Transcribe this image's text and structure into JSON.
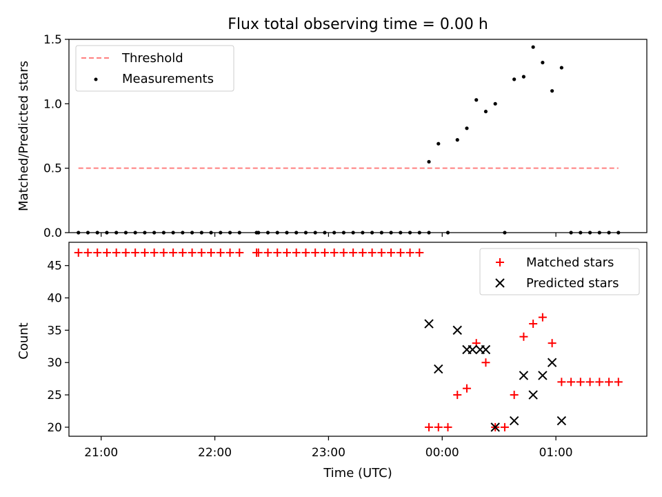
{
  "chart_data": [
    {
      "type": "scatter",
      "title": "Flux total observing time = 0.00 h",
      "xlabel": "",
      "ylabel": "Matched/Predicted stars",
      "x_unit": "time (UTC)",
      "xlim": [
        "20:43",
        "01:48"
      ],
      "ylim": [
        0,
        1.5
      ],
      "yticks": [
        "0.0",
        "0.5",
        "1.0",
        "1.5"
      ],
      "legend_position": "upper-left",
      "series": [
        {
          "name": "Threshold",
          "kind": "dashed-line",
          "color": "#ff7f7f",
          "points": [
            [
              "20:48",
              0.5
            ],
            [
              "01:33",
              0.5
            ]
          ]
        },
        {
          "name": "Measurements",
          "kind": "dots",
          "color": "#000000",
          "points": [
            [
              "20:48",
              0
            ],
            [
              "20:53",
              0
            ],
            [
              "20:58",
              0
            ],
            [
              "21:03",
              0
            ],
            [
              "21:08",
              0
            ],
            [
              "21:13",
              0
            ],
            [
              "21:18",
              0
            ],
            [
              "21:23",
              0
            ],
            [
              "21:28",
              0
            ],
            [
              "21:33",
              0
            ],
            [
              "21:38",
              0
            ],
            [
              "21:43",
              0
            ],
            [
              "21:48",
              0
            ],
            [
              "21:53",
              0
            ],
            [
              "21:58",
              0
            ],
            [
              "22:03",
              0
            ],
            [
              "22:08",
              0
            ],
            [
              "22:13",
              0
            ],
            [
              "22:22",
              0
            ],
            [
              "22:23",
              0
            ],
            [
              "22:28",
              0
            ],
            [
              "22:33",
              0
            ],
            [
              "22:38",
              0
            ],
            [
              "22:43",
              0
            ],
            [
              "22:48",
              0
            ],
            [
              "22:53",
              0
            ],
            [
              "22:58",
              0
            ],
            [
              "23:03",
              0
            ],
            [
              "23:08",
              0
            ],
            [
              "23:13",
              0
            ],
            [
              "23:18",
              0
            ],
            [
              "23:23",
              0
            ],
            [
              "23:28",
              0
            ],
            [
              "23:33",
              0
            ],
            [
              "23:38",
              0
            ],
            [
              "23:43",
              0
            ],
            [
              "23:48",
              0
            ],
            [
              "23:53",
              0
            ],
            [
              "23:53",
              0.55
            ],
            [
              "23:58",
              0.69
            ],
            [
              "00:03",
              0
            ],
            [
              "00:08",
              0.72
            ],
            [
              "00:13",
              0.81
            ],
            [
              "00:18",
              1.03
            ],
            [
              "00:23",
              0.94
            ],
            [
              "00:28",
              1.0
            ],
            [
              "00:33",
              0
            ],
            [
              "00:38",
              1.19
            ],
            [
              "00:43",
              1.21
            ],
            [
              "00:48",
              1.44
            ],
            [
              "00:53",
              1.32
            ],
            [
              "00:58",
              1.1
            ],
            [
              "01:03",
              1.28
            ],
            [
              "01:08",
              0
            ],
            [
              "01:13",
              0
            ],
            [
              "01:18",
              0
            ],
            [
              "01:23",
              0
            ],
            [
              "01:28",
              0
            ],
            [
              "01:33",
              0
            ]
          ]
        }
      ]
    },
    {
      "type": "scatter",
      "title": "",
      "xlabel": "Time (UTC)",
      "ylabel": "Count",
      "xlim": [
        "20:43",
        "01:48"
      ],
      "ylim": [
        18.6,
        48.6
      ],
      "xticks": [
        "21:00",
        "22:00",
        "23:00",
        "00:00",
        "01:00"
      ],
      "yticks": [
        "20",
        "25",
        "30",
        "35",
        "40",
        "45"
      ],
      "legend_position": "upper-right",
      "series": [
        {
          "name": "Matched stars",
          "marker": "plus",
          "color": "#ff0000",
          "points": [
            [
              "20:48",
              47
            ],
            [
              "20:53",
              47
            ],
            [
              "20:58",
              47
            ],
            [
              "21:03",
              47
            ],
            [
              "21:08",
              47
            ],
            [
              "21:13",
              47
            ],
            [
              "21:18",
              47
            ],
            [
              "21:23",
              47
            ],
            [
              "21:28",
              47
            ],
            [
              "21:33",
              47
            ],
            [
              "21:38",
              47
            ],
            [
              "21:43",
              47
            ],
            [
              "21:48",
              47
            ],
            [
              "21:53",
              47
            ],
            [
              "21:58",
              47
            ],
            [
              "22:03",
              47
            ],
            [
              "22:08",
              47
            ],
            [
              "22:13",
              47
            ],
            [
              "22:22",
              47
            ],
            [
              "22:23",
              47
            ],
            [
              "22:28",
              47
            ],
            [
              "22:33",
              47
            ],
            [
              "22:38",
              47
            ],
            [
              "22:43",
              47
            ],
            [
              "22:48",
              47
            ],
            [
              "22:53",
              47
            ],
            [
              "22:58",
              47
            ],
            [
              "23:03",
              47
            ],
            [
              "23:08",
              47
            ],
            [
              "23:13",
              47
            ],
            [
              "23:18",
              47
            ],
            [
              "23:23",
              47
            ],
            [
              "23:28",
              47
            ],
            [
              "23:33",
              47
            ],
            [
              "23:38",
              47
            ],
            [
              "23:43",
              47
            ],
            [
              "23:48",
              47
            ],
            [
              "23:53",
              20
            ],
            [
              "23:58",
              20
            ],
            [
              "00:03",
              20
            ],
            [
              "00:08",
              25
            ],
            [
              "00:13",
              26
            ],
            [
              "00:18",
              33
            ],
            [
              "00:23",
              30
            ],
            [
              "00:28",
              20
            ],
            [
              "00:33",
              20
            ],
            [
              "00:38",
              25
            ],
            [
              "00:43",
              34
            ],
            [
              "00:48",
              36
            ],
            [
              "00:53",
              37
            ],
            [
              "00:58",
              33
            ],
            [
              "01:03",
              27
            ],
            [
              "01:08",
              27
            ],
            [
              "01:13",
              27
            ],
            [
              "01:18",
              27
            ],
            [
              "01:23",
              27
            ],
            [
              "01:28",
              27
            ],
            [
              "01:33",
              27
            ]
          ]
        },
        {
          "name": "Predicted stars",
          "marker": "x",
          "color": "#000000",
          "points": [
            [
              "23:53",
              36
            ],
            [
              "23:58",
              29
            ],
            [
              "00:08",
              35
            ],
            [
              "00:13",
              32
            ],
            [
              "00:16",
              32
            ],
            [
              "00:20",
              32
            ],
            [
              "00:23",
              32
            ],
            [
              "00:28",
              20
            ],
            [
              "00:38",
              21
            ],
            [
              "00:43",
              28
            ],
            [
              "00:48",
              25
            ],
            [
              "00:53",
              28
            ],
            [
              "00:58",
              30
            ],
            [
              "01:03",
              21
            ]
          ]
        }
      ]
    }
  ]
}
